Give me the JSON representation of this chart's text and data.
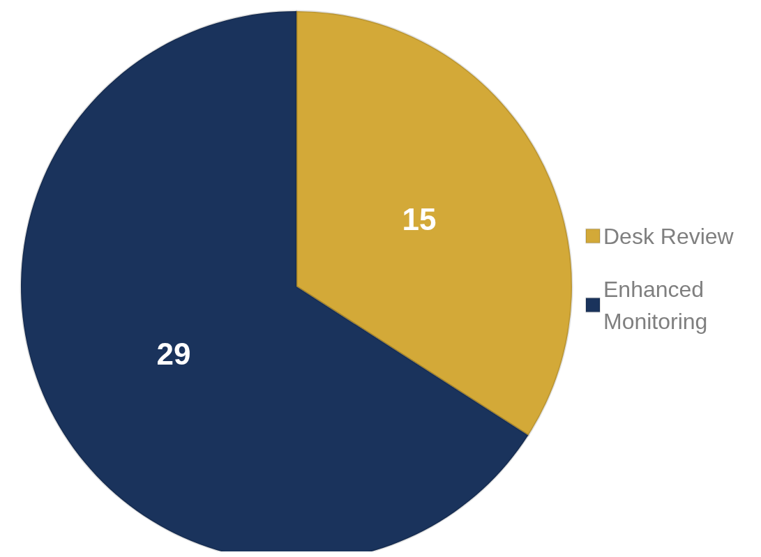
{
  "chart_data": {
    "type": "pie",
    "categories": [
      "Desk Review",
      "Enhanced Monitoring"
    ],
    "values": [
      15,
      29
    ],
    "colors": [
      "#d3a938",
      "#1a335c"
    ],
    "data_labels": true,
    "legend": "right"
  }
}
